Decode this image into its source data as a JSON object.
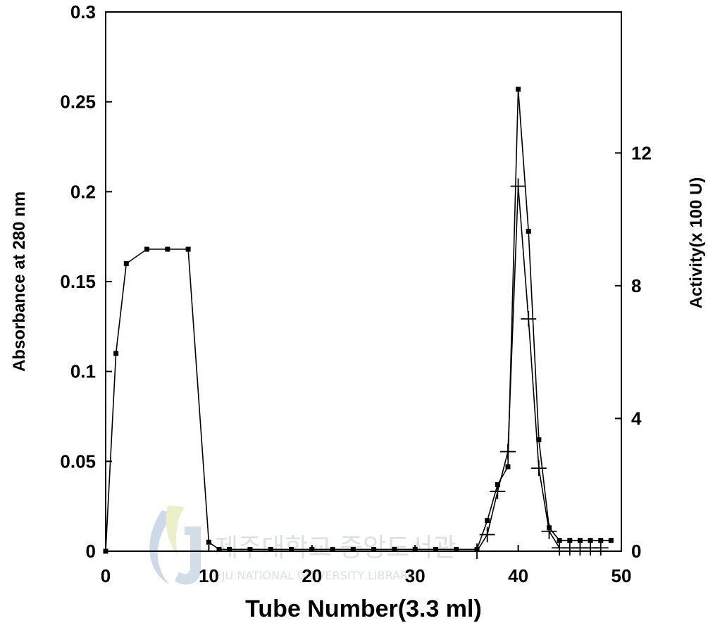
{
  "chart_data": {
    "type": "line",
    "xlabel": "Tube Number(3.3 ml)",
    "ylabel_left": "Absorbance at 280 nm",
    "ylabel_right": "Activity(x 100 U)",
    "xlim": [
      0,
      50
    ],
    "ylim_left": [
      0,
      0.3
    ],
    "ylim_right": [
      0,
      16.25
    ],
    "x_ticks": [
      0,
      10,
      20,
      30,
      40,
      50
    ],
    "x_tick_labels": [
      "0",
      "10",
      "20",
      "30",
      "40",
      "50"
    ],
    "y_left_ticks": [
      0,
      0.05,
      0.1,
      0.15,
      0.2,
      0.25,
      0.3
    ],
    "y_left_tick_labels": [
      "0",
      "0.05",
      "0.1",
      "0.15",
      "0.2",
      "0.25",
      "0.3"
    ],
    "y_right_ticks": [
      0,
      4,
      8,
      12
    ],
    "y_right_tick_labels": [
      "0",
      "4",
      "8",
      "12"
    ],
    "grid": false,
    "series": [
      {
        "axis": "left",
        "marker": "square",
        "color": "#000000",
        "x": [
          0,
          1,
          2,
          4,
          6,
          8,
          10,
          11,
          12,
          14,
          16,
          18,
          20,
          22,
          24,
          26,
          28,
          30,
          32,
          34,
          36,
          37,
          38,
          39,
          40,
          41,
          42,
          43,
          44,
          45,
          46,
          47,
          48,
          49
        ],
        "y": [
          0,
          0.11,
          0.16,
          0.168,
          0.168,
          0.168,
          0.005,
          0.001,
          0.001,
          0.001,
          0.001,
          0.001,
          0.001,
          0.001,
          0.001,
          0.001,
          0.001,
          0.001,
          0.001,
          0.001,
          0.001,
          0.017,
          0.037,
          0.047,
          0.257,
          0.178,
          0.062,
          0.013,
          0.006,
          0.006,
          0.006,
          0.006,
          0.006,
          0.006
        ]
      },
      {
        "axis": "right",
        "marker": "plus",
        "color": "#000000",
        "x": [
          36,
          37,
          38,
          39,
          40,
          41,
          42,
          43,
          44,
          45,
          46,
          47,
          48
        ],
        "y": [
          0,
          0.5,
          1.8,
          3.0,
          11.0,
          7.0,
          2.5,
          0.6,
          0.1,
          0.1,
          0.1,
          0.1,
          0.1
        ]
      }
    ]
  },
  "watermark": {
    "korean": "제주대학교 중앙도서관",
    "english": "JEJU NATIONAL UNIVERSITY LIBRARY",
    "logo_color": "#8fb0cc"
  }
}
